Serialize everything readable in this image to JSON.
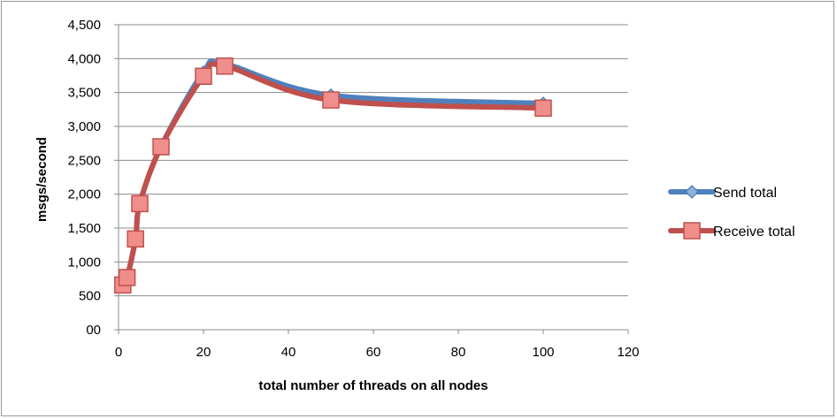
{
  "chart_data": {
    "type": "line",
    "title": "",
    "xlabel": "total number of threads on all nodes",
    "ylabel": "msgs/second",
    "xlim": [
      0,
      120
    ],
    "ylim": [
      0,
      4500
    ],
    "x_ticks": [
      "0",
      "20",
      "40",
      "60",
      "80",
      "100",
      "120"
    ],
    "y_ticks": [
      "00",
      "500",
      "1,000",
      "1,500",
      "2,000",
      "2,500",
      "3,000",
      "3,500",
      "4,000",
      "4,500"
    ],
    "grid": true,
    "legend_position": "right",
    "series": [
      {
        "name": "Send total",
        "color": "#4f81bd",
        "marker": "diamond",
        "x": [
          1,
          2,
          4,
          5,
          10,
          20,
          25,
          50,
          100
        ],
        "y": [
          650,
          760,
          1340,
          1860,
          2700,
          3800,
          3920,
          3460,
          3340
        ]
      },
      {
        "name": "Receive total",
        "color": "#c0504d",
        "marker": "square",
        "x": [
          1,
          2,
          4,
          5,
          10,
          20,
          25,
          50,
          100
        ],
        "y": [
          660,
          770,
          1340,
          1860,
          2700,
          3740,
          3890,
          3390,
          3270
        ]
      }
    ]
  }
}
